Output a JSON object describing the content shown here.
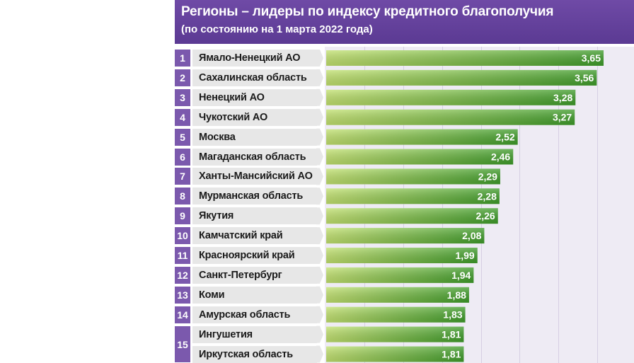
{
  "header": {
    "title": "Регионы – лидеры по индексу кредитного благополучия",
    "subtitle": "(по состоянию на 1 марта 2022 года)"
  },
  "colors": {
    "header_bg": "#5b3a93",
    "rank_bg": "#7b59ad",
    "label_bg": "#e7e7e7",
    "bar_light": "#bfe06b",
    "bar_dark": "#3f9d2a",
    "plot_bg": "#eeebf4"
  },
  "chart_data": {
    "type": "bar",
    "orientation": "horizontal",
    "title": "Регионы – лидеры по индексу кредитного благополучия",
    "subtitle": "(по состоянию на 1 марта 2022 года)",
    "categories": [
      "Ямало-Ненецкий АО",
      "Сахалинская область",
      "Ненецкий АО",
      "Чукотский АО",
      "Москва",
      "Магаданская область",
      "Ханты-Мансийский АО",
      "Мурманская область",
      "Якутия",
      "Камчатский край",
      "Красноярский край",
      "Санкт-Петербург",
      "Коми",
      "Амурская область",
      "Ингушетия",
      "Иркутская область"
    ],
    "values": [
      3.65,
      3.56,
      3.28,
      3.27,
      2.52,
      2.46,
      2.29,
      2.28,
      2.26,
      2.08,
      1.99,
      1.94,
      1.88,
      1.83,
      1.81,
      1.81
    ],
    "value_labels": [
      "3,65",
      "3,56",
      "3,28",
      "3,27",
      "2,52",
      "2,46",
      "2,29",
      "2,28",
      "2,26",
      "2,08",
      "1,99",
      "1,94",
      "1,88",
      "1,83",
      "1,81",
      "1,81"
    ],
    "ranks": [
      "1",
      "2",
      "3",
      "4",
      "5",
      "6",
      "7",
      "8",
      "9",
      "10",
      "11",
      "12",
      "13",
      "14",
      "15"
    ],
    "shared_rank": {
      "rank": "15",
      "rows": [
        14,
        15
      ]
    },
    "xlim": [
      0,
      4
    ],
    "grid": true,
    "legend": "none"
  }
}
